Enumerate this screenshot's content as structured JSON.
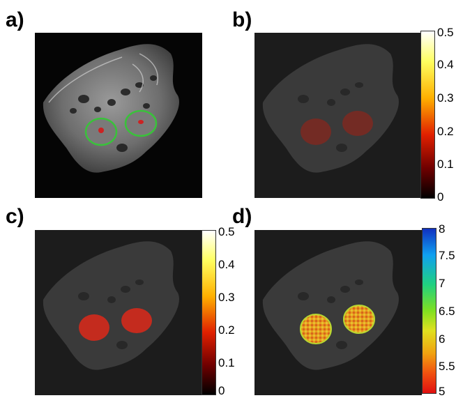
{
  "panels": {
    "a": {
      "label": "a)"
    },
    "b": {
      "label": "b)"
    },
    "c": {
      "label": "c)"
    },
    "d": {
      "label": "d)"
    }
  },
  "colorbars": {
    "b": {
      "ticks": [
        "0.5",
        "0.4",
        "0.3",
        "0.2",
        "0.1",
        "0"
      ],
      "colormap": "hot"
    },
    "c": {
      "ticks": [
        "0.5",
        "0.4",
        "0.3",
        "0.2",
        "0.1",
        "0"
      ],
      "colormap": "hot"
    },
    "d": {
      "ticks": [
        "8",
        "7.5",
        "7",
        "6.5",
        "6",
        "5.5",
        "5"
      ],
      "colormap": "jet"
    }
  },
  "colors": {
    "roi_outline": "#39c23a",
    "tissue": "#8a8a8a",
    "background_dark": "#0a0a0a",
    "background_gray": "#1e1e1e",
    "overlay_red": "#d42a1c",
    "overlay_orange": "#e8881e"
  }
}
